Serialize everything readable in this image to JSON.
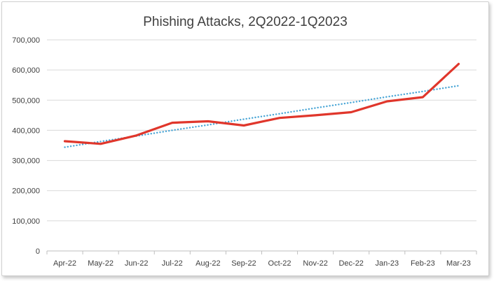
{
  "chart_data": {
    "type": "line",
    "title": "Phishing Attacks, 2Q2022-1Q2023",
    "xlabel": "",
    "ylabel": "",
    "categories": [
      "Apr-22",
      "May-22",
      "Jun-22",
      "Jul-22",
      "Aug-22",
      "Sep-22",
      "Oct-22",
      "Nov-22",
      "Dec-22",
      "Jan-23",
      "Feb-23",
      "Mar-23"
    ],
    "ylim": [
      0,
      700000
    ],
    "yticks": [
      "0",
      "100,000",
      "200,000",
      "300,000",
      "400,000",
      "500,000",
      "600,000",
      "700,000"
    ],
    "series": [
      {
        "kind": "actual",
        "color": "#e0362b",
        "style": "solid",
        "values": [
          364000,
          355000,
          383000,
          425000,
          430000,
          416000,
          441000,
          450000,
          460000,
          496000,
          510000,
          620000
        ]
      },
      {
        "kind": "trendline",
        "color": "#4aa6d6",
        "style": "dotted",
        "values": [
          344000,
          363000,
          381000,
          400000,
          418000,
          437000,
          455000,
          474000,
          492000,
          511000,
          529000,
          548000
        ]
      }
    ],
    "grid": true,
    "legend": "none"
  }
}
